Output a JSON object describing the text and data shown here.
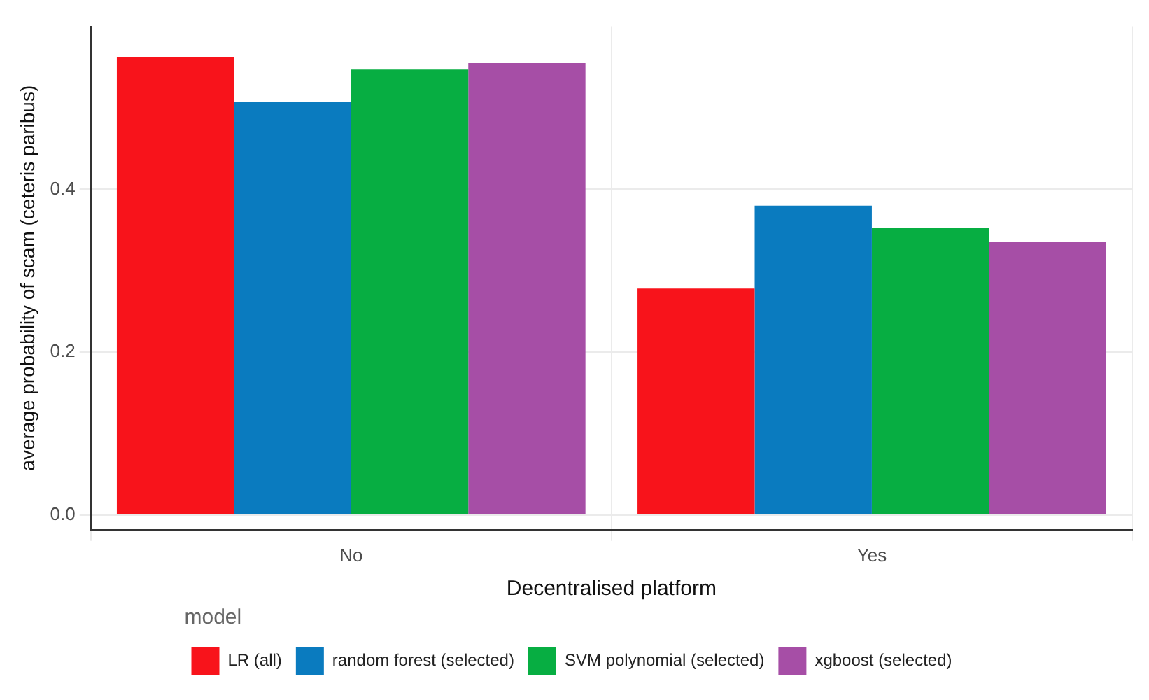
{
  "chart_data": {
    "type": "bar",
    "xlabel": "Decentralised platform",
    "ylabel": "average probability of scam (ceteris paribus)",
    "legend_title": "model",
    "categories": [
      "No",
      "Yes"
    ],
    "series": [
      {
        "name": "LR (all)",
        "color": "#f8131b",
        "values": [
          0.562,
          0.278
        ]
      },
      {
        "name": "random forest (selected)",
        "color": "#0a7bbf",
        "values": [
          0.507,
          0.38
        ]
      },
      {
        "name": "SVM polynomial (selected)",
        "color": "#07ae42",
        "values": [
          0.547,
          0.353
        ]
      },
      {
        "name": "xgboost (selected)",
        "color": "#a64ea6",
        "values": [
          0.555,
          0.335
        ]
      }
    ],
    "ylim": [
      -0.018,
      0.6
    ],
    "yticks": [
      {
        "value": 0,
        "label": "0.0"
      },
      {
        "value": 0.2,
        "label": "0.2"
      },
      {
        "value": 0.4,
        "label": "0.4"
      }
    ],
    "grid": true,
    "legend": "bottom"
  }
}
